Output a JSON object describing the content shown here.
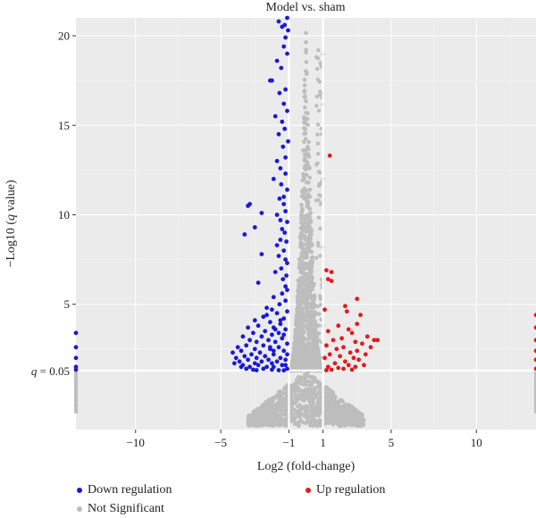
{
  "chart_data": {
    "type": "scatter",
    "title": "Model vs. sham",
    "xlabel": "Log2 (fold-change)",
    "ylabel_prefix": "−Log10 (",
    "ylabel_italic": "q",
    "ylabel_suffix": " value)",
    "xlim": [
      -13.5,
      13.5
    ],
    "ylim": [
      -2,
      21
    ],
    "x_ticks": [
      -10,
      -5,
      -1,
      1,
      5,
      10
    ],
    "x_tick_labels": [
      "−10",
      "−5",
      "−1",
      "1",
      "5",
      "10"
    ],
    "y_ticks": [
      5,
      10,
      15,
      20
    ],
    "y_tick_labels": [
      "5",
      "10",
      "15",
      "20"
    ],
    "threshold_label_italic": "q",
    "threshold_label_rest": " = 0.05",
    "threshold_y": 1.3,
    "fc_thresholds": [
      -1,
      1
    ],
    "grid": true,
    "colors": {
      "down": "#1a1ad6",
      "up": "#e31a1c",
      "ns": "#bdbdbd",
      "panel": "#ebebeb",
      "grid": "#ffffff"
    },
    "series": [
      {
        "name": "Down regulation",
        "key": "down",
        "points": [
          [
            -1.1,
            21.0
          ],
          [
            -1.25,
            20.6
          ],
          [
            -1.05,
            20.3
          ],
          [
            -1.4,
            20.5
          ],
          [
            -1.6,
            20.8
          ],
          [
            -1.2,
            19.9
          ],
          [
            -1.3,
            19.4
          ],
          [
            -1.1,
            19.0
          ],
          [
            -1.7,
            18.6
          ],
          [
            -1.45,
            18.2
          ],
          [
            -2.0,
            17.5
          ],
          [
            -2.1,
            17.5
          ],
          [
            -1.2,
            17.0
          ],
          [
            -1.55,
            16.8
          ],
          [
            -1.3,
            16.2
          ],
          [
            -1.1,
            15.8
          ],
          [
            -1.8,
            15.5
          ],
          [
            -1.4,
            15.2
          ],
          [
            -1.25,
            14.8
          ],
          [
            -1.6,
            14.5
          ],
          [
            -1.05,
            14.1
          ],
          [
            -1.35,
            13.8
          ],
          [
            -1.2,
            13.2
          ],
          [
            -1.7,
            13.0
          ],
          [
            -1.5,
            12.6
          ],
          [
            -1.2,
            12.3
          ],
          [
            -1.9,
            12.0
          ],
          [
            -1.45,
            11.7
          ],
          [
            -1.1,
            11.4
          ],
          [
            -1.3,
            11.0
          ],
          [
            -1.55,
            10.9
          ],
          [
            -3.3,
            10.6
          ],
          [
            -3.4,
            10.5
          ],
          [
            -1.3,
            10.6
          ],
          [
            -1.2,
            10.2
          ],
          [
            -1.7,
            10.0
          ],
          [
            -2.6,
            10.1
          ],
          [
            -1.5,
            9.7
          ],
          [
            -1.1,
            9.6
          ],
          [
            -3.0,
            9.3
          ],
          [
            -1.4,
            9.2
          ],
          [
            -1.25,
            9.0
          ],
          [
            -3.6,
            8.9
          ],
          [
            -1.5,
            8.6
          ],
          [
            -1.15,
            8.5
          ],
          [
            -1.7,
            8.3
          ],
          [
            -1.3,
            8.0
          ],
          [
            -2.6,
            7.8
          ],
          [
            -1.6,
            7.7
          ],
          [
            -1.2,
            7.5
          ],
          [
            -1.1,
            7.3
          ],
          [
            -1.45,
            7.0
          ],
          [
            -1.8,
            6.8
          ],
          [
            -1.15,
            6.6
          ],
          [
            -1.35,
            6.4
          ],
          [
            -2.8,
            6.2
          ],
          [
            -1.2,
            6.0
          ],
          [
            -1.1,
            5.8
          ],
          [
            -1.4,
            5.6
          ],
          [
            -1.9,
            5.4
          ],
          [
            -1.2,
            5.2
          ],
          [
            -1.55,
            5.0
          ],
          [
            -2.3,
            4.8
          ],
          [
            -2.0,
            4.7
          ],
          [
            -1.1,
            4.6
          ],
          [
            -1.7,
            4.5
          ],
          [
            -2.5,
            4.3
          ],
          [
            -1.3,
            4.2
          ],
          [
            -3.0,
            4.1
          ],
          [
            -2.1,
            4.0
          ],
          [
            -1.5,
            3.9
          ],
          [
            -2.8,
            3.8
          ],
          [
            -3.4,
            3.7
          ],
          [
            -1.9,
            3.7
          ],
          [
            -1.2,
            3.6
          ],
          [
            -2.4,
            3.5
          ],
          [
            -3.1,
            3.4
          ],
          [
            -1.6,
            3.4
          ],
          [
            -2.0,
            3.3
          ],
          [
            -3.7,
            3.2
          ],
          [
            -2.6,
            3.2
          ],
          [
            -1.4,
            3.1
          ],
          [
            -3.3,
            3.0
          ],
          [
            -2.2,
            3.0
          ],
          [
            -1.8,
            2.9
          ],
          [
            -2.9,
            2.9
          ],
          [
            -1.1,
            2.8
          ],
          [
            -3.5,
            2.7
          ],
          [
            -2.5,
            2.7
          ],
          [
            -4.0,
            2.6
          ],
          [
            -1.6,
            2.6
          ],
          [
            -3.0,
            2.5
          ],
          [
            -2.1,
            2.5
          ],
          [
            -3.8,
            2.4
          ],
          [
            -1.3,
            2.4
          ],
          [
            -2.7,
            2.3
          ],
          [
            -4.3,
            2.3
          ],
          [
            -1.9,
            2.2
          ],
          [
            -3.2,
            2.2
          ],
          [
            -2.4,
            2.1
          ],
          [
            -3.6,
            2.1
          ],
          [
            -1.5,
            2.0
          ],
          [
            -2.9,
            2.0
          ],
          [
            -4.1,
            2.0
          ],
          [
            -2.2,
            1.9
          ],
          [
            -3.4,
            1.9
          ],
          [
            -1.2,
            1.9
          ],
          [
            -2.6,
            1.8
          ],
          [
            -3.9,
            1.8
          ],
          [
            -1.7,
            1.8
          ],
          [
            -3.0,
            1.7
          ],
          [
            -2.0,
            1.7
          ],
          [
            -3.7,
            1.6
          ],
          [
            -1.4,
            1.6
          ],
          [
            -2.8,
            1.6
          ],
          [
            -3.3,
            1.5
          ],
          [
            -2.3,
            1.5
          ],
          [
            -1.9,
            1.5
          ],
          [
            -3.5,
            1.4
          ],
          [
            -1.1,
            1.4
          ],
          [
            -2.5,
            1.4
          ],
          [
            -3.1,
            1.35
          ],
          [
            -2.0,
            1.35
          ],
          [
            -1.6,
            1.32
          ],
          [
            -2.9,
            1.32
          ],
          [
            -1.3,
            1.31
          ],
          [
            -3.8,
            1.5
          ],
          [
            -4.2,
            1.7
          ],
          [
            -2.1,
            2.6
          ],
          [
            -1.8,
            3.6
          ],
          [
            -2.3,
            4.4
          ],
          [
            -1.5,
            4.1
          ],
          [
            -1.3,
            3.3
          ],
          [
            -1.1,
            2.2
          ],
          [
            -1.2,
            1.6
          ],
          [
            -1.9,
            2.4
          ],
          [
            -13.5,
            3.4
          ],
          [
            -13.5,
            2.6
          ],
          [
            -13.5,
            2.0
          ],
          [
            -13.5,
            1.5
          ],
          [
            -13.5,
            1.35
          ]
        ]
      },
      {
        "name": "Up regulation",
        "key": "up",
        "points": [
          [
            1.4,
            13.3
          ],
          [
            1.2,
            6.9
          ],
          [
            1.5,
            6.8
          ],
          [
            1.3,
            6.4
          ],
          [
            1.5,
            6.3
          ],
          [
            2.3,
            4.9
          ],
          [
            3.0,
            5.3
          ],
          [
            1.1,
            4.7
          ],
          [
            2.4,
            4.6
          ],
          [
            3.2,
            4.4
          ],
          [
            3.0,
            3.9
          ],
          [
            1.9,
            3.8
          ],
          [
            2.5,
            3.6
          ],
          [
            1.3,
            3.5
          ],
          [
            2.7,
            3.4
          ],
          [
            3.6,
            3.2
          ],
          [
            2.1,
            3.1
          ],
          [
            4.0,
            3.0
          ],
          [
            1.6,
            3.0
          ],
          [
            2.9,
            2.9
          ],
          [
            3.3,
            2.8
          ],
          [
            1.2,
            2.7
          ],
          [
            2.2,
            2.6
          ],
          [
            3.8,
            2.6
          ],
          [
            1.8,
            2.5
          ],
          [
            3.0,
            2.4
          ],
          [
            2.6,
            2.3
          ],
          [
            1.4,
            2.2
          ],
          [
            3.5,
            2.2
          ],
          [
            2.0,
            2.1
          ],
          [
            2.8,
            2.0
          ],
          [
            1.1,
            2.0
          ],
          [
            3.1,
            1.9
          ],
          [
            2.3,
            1.8
          ],
          [
            1.7,
            1.7
          ],
          [
            2.5,
            1.6
          ],
          [
            1.3,
            1.5
          ],
          [
            2.9,
            1.5
          ],
          [
            1.9,
            1.45
          ],
          [
            2.2,
            1.4
          ],
          [
            1.5,
            1.35
          ],
          [
            2.7,
            1.35
          ],
          [
            1.2,
            1.32
          ],
          [
            3.4,
            1.6
          ],
          [
            4.2,
            3.0
          ],
          [
            13.5,
            4.4
          ],
          [
            13.5,
            3.7
          ],
          [
            13.5,
            3.0
          ],
          [
            13.5,
            2.4
          ],
          [
            13.5,
            1.9
          ],
          [
            13.5,
            1.4
          ]
        ]
      },
      {
        "name": "Not Significant",
        "key": "ns",
        "points": []
      }
    ]
  }
}
